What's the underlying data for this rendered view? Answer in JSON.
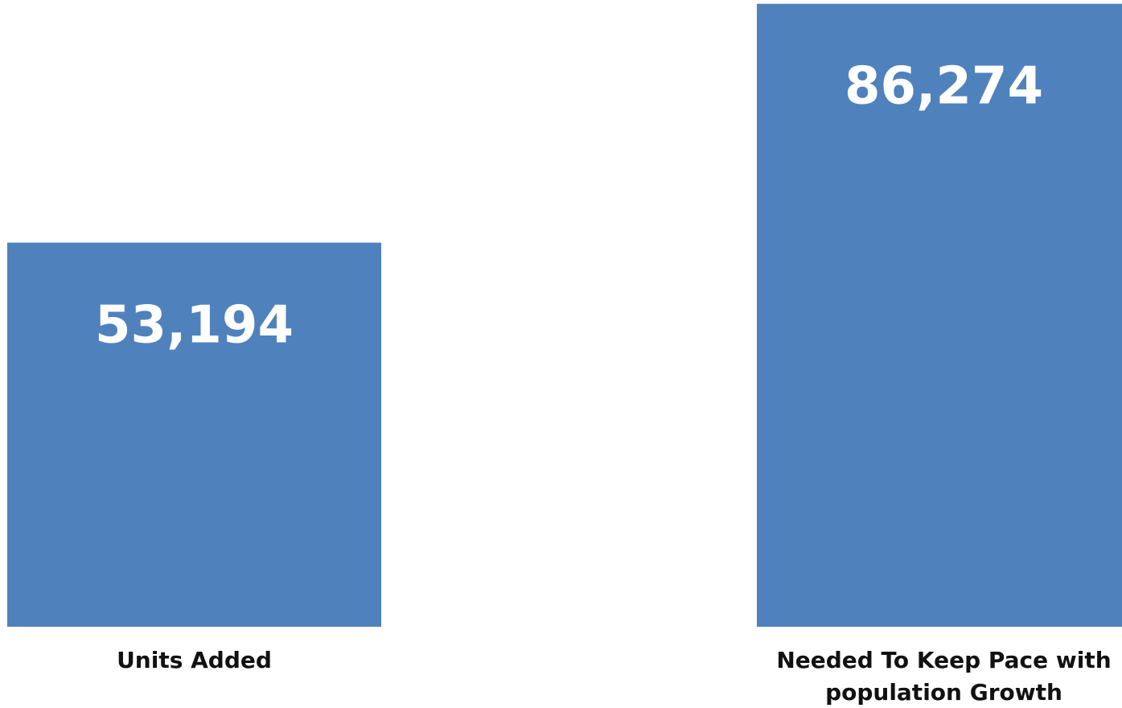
{
  "chart_data": {
    "type": "bar",
    "categories": [
      [
        "Units Added"
      ],
      [
        "Needed To Keep Pace with",
        "population Growth"
      ]
    ],
    "values": [
      53194,
      86274
    ],
    "data_labels": [
      "53,194",
      "86,274"
    ],
    "title": "",
    "xlabel": "",
    "ylabel": "",
    "ylim": [
      0,
      86800
    ],
    "grid": false,
    "legend": "none",
    "bar_color": "#4F81BD"
  }
}
